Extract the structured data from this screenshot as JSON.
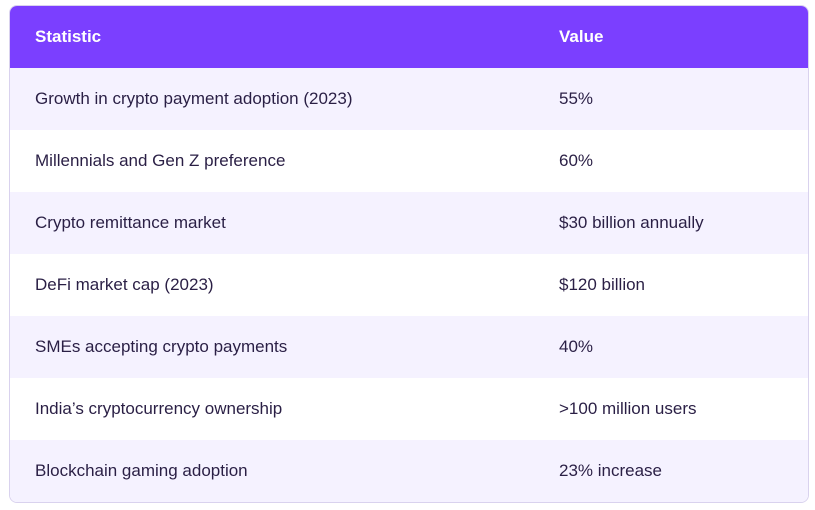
{
  "table": {
    "headers": [
      "Statistic",
      "Value"
    ],
    "rows": [
      [
        "Growth in crypto payment adoption (2023)",
        "55%"
      ],
      [
        "Millennials and Gen Z preference",
        "60%"
      ],
      [
        "Crypto remittance market",
        "$30 billion annually"
      ],
      [
        "DeFi market cap (2023)",
        "$120 billion"
      ],
      [
        "SMEs accepting crypto payments",
        "40%"
      ],
      [
        "India’s cryptocurrency ownership",
        ">100 million users"
      ],
      [
        "Blockchain gaming adoption",
        "23% increase"
      ]
    ]
  },
  "colors": {
    "header_bg": "#7b3fff",
    "header_text": "#ffffff",
    "row_alt_bg": "#f5f2ff",
    "row_bg": "#ffffff",
    "body_text": "#2a1f45",
    "border": "#d9d2ee"
  }
}
